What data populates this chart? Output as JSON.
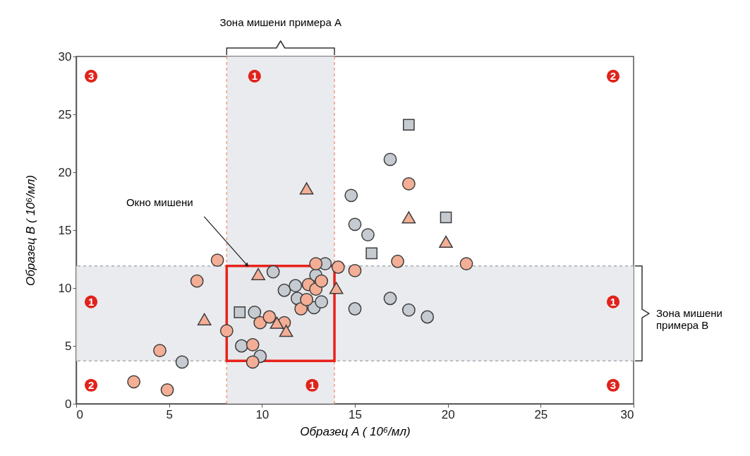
{
  "chart_data": {
    "type": "scatter",
    "xlabel": "Образец A ( 10⁶/мл)",
    "ylabel": "Образец B ( 10⁶/мл)",
    "xlim": [
      0,
      30
    ],
    "ylim": [
      0,
      30
    ],
    "xticks": [
      0,
      5,
      10,
      15,
      20,
      25,
      30
    ],
    "yticks": [
      0,
      5,
      10,
      15,
      20,
      25,
      30
    ],
    "grid": false,
    "series": [
      {
        "color": "#c5cbd0",
        "marker": "circle",
        "x": [
          5.7,
          8.9,
          9.9,
          9.6,
          10.6,
          11.2,
          11.8,
          11.9,
          12.8,
          13.2,
          12.9,
          13.4,
          14.8,
          15.0,
          15.7,
          16.9,
          15.0,
          16.9,
          17.9,
          18.9
        ],
        "values": [
          3.6,
          5.0,
          4.1,
          7.9,
          11.4,
          9.8,
          10.2,
          9.1,
          8.3,
          8.8,
          11.1,
          12.1,
          18.0,
          15.5,
          14.6,
          21.1,
          8.2,
          9.1,
          8.1,
          7.5
        ]
      },
      {
        "color": "#f4ae96",
        "marker": "circle",
        "x": [
          3.1,
          4.9,
          4.5,
          6.5,
          7.6,
          8.1,
          9.5,
          9.5,
          9.9,
          10.4,
          11.2,
          12.1,
          12.4,
          12.5,
          12.9,
          13.2,
          12.9,
          14.1,
          15.0,
          17.3,
          17.9,
          21.0
        ],
        "values": [
          1.9,
          1.2,
          4.6,
          10.6,
          12.4,
          6.3,
          5.1,
          3.6,
          7.0,
          7.5,
          7.0,
          8.2,
          9.0,
          10.3,
          9.9,
          10.6,
          12.1,
          11.8,
          11.5,
          12.3,
          19.0,
          12.1
        ]
      },
      {
        "color": "#f4ae96",
        "marker": "triangle",
        "x": [
          6.9,
          9.8,
          10.8,
          11.3,
          12.4,
          14.0,
          17.9,
          19.9
        ],
        "values": [
          7.3,
          11.2,
          7.0,
          6.3,
          18.6,
          10.0,
          16.1,
          14.0
        ]
      },
      {
        "color": "#c5cbd0",
        "marker": "square",
        "x": [
          8.8,
          15.9,
          17.9,
          19.9
        ],
        "values": [
          7.9,
          13.0,
          24.1,
          16.1
        ]
      }
    ],
    "bands": [
      {
        "axis": "x",
        "from": 8.1,
        "to": 13.9,
        "label": "Зона мишени примера A",
        "color": "#e6e8eb"
      },
      {
        "axis": "y",
        "from": 3.7,
        "to": 11.9,
        "label": "Зона мишени примера B",
        "color": "#e6e8eb"
      }
    ],
    "ref_lines": [
      {
        "axis": "x",
        "value": 8.1,
        "color": "#f29a80",
        "line_style": "dashed"
      },
      {
        "axis": "x",
        "value": 13.9,
        "color": "#f29a80",
        "line_style": "dashed"
      },
      {
        "axis": "y",
        "value": 3.7,
        "color": "#a8adb3",
        "line_style": "dashed"
      },
      {
        "axis": "y",
        "value": 11.9,
        "color": "#a8adb3",
        "line_style": "dashed"
      }
    ],
    "annotations": [
      "Окно мишени",
      {
        "text": "3",
        "x": 0.8,
        "y": 28.3
      },
      {
        "text": "1",
        "x": 9.6,
        "y": 28.3
      },
      {
        "text": "2",
        "x": 28.9,
        "y": 28.3
      },
      {
        "text": "1",
        "x": 0.8,
        "y": 8.8
      },
      {
        "text": "1",
        "x": 28.9,
        "y": 8.8
      },
      {
        "text": "2",
        "x": 0.8,
        "y": 1.6
      },
      {
        "text": "1",
        "x": 12.7,
        "y": 1.6
      },
      {
        "text": "3",
        "x": 28.9,
        "y": 1.6
      }
    ]
  }
}
